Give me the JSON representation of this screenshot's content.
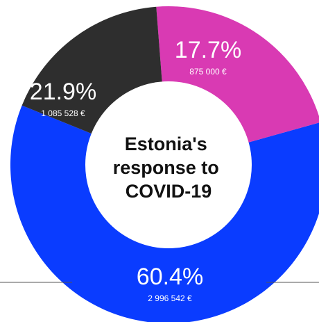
{
  "chart_data": {
    "type": "pie",
    "donut": true,
    "title_lines": [
      "Estonia's",
      "response to",
      "COVID-19"
    ],
    "slices": [
      {
        "label_pct": "60.4%",
        "label_value": "2 996 542 €",
        "value": 2996542,
        "percent": 60.4,
        "color": "#0a3cff"
      },
      {
        "label_pct": "21.9%",
        "label_value": "1 085 528 €",
        "value": 1085528,
        "percent": 21.9,
        "color": "#d93ab3"
      },
      {
        "label_pct": "17.7%",
        "label_value": "875 000 €",
        "value": 875000,
        "percent": 17.7,
        "color": "#2e2e2e"
      }
    ],
    "legend": "none",
    "background": "#ffffff",
    "center_color": "#ffffff",
    "divider_color": "#555555"
  }
}
